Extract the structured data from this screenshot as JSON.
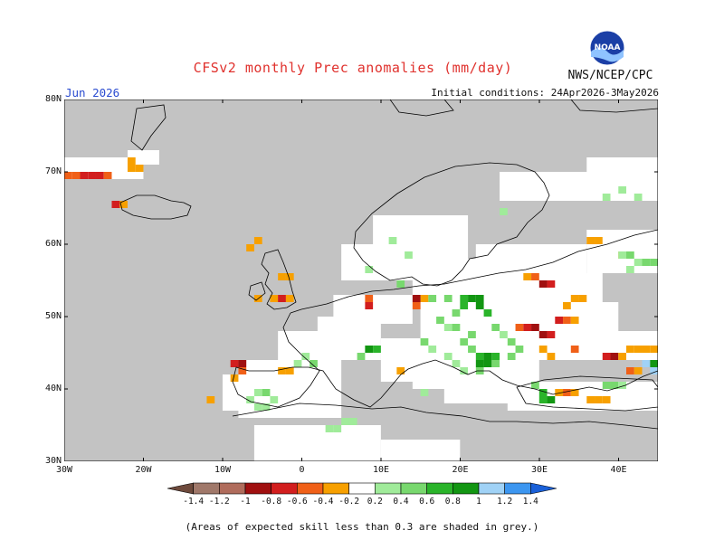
{
  "header": {
    "title": "CFSv2 monthly Prec anomalies (mm/day)",
    "org": "NWS/NCEP/CPC",
    "logo_text": "NOAA",
    "month": "Jun 2026",
    "initial_conditions": "Initial conditions: 24Apr2026-3May2026"
  },
  "map": {
    "y_ticks": [
      "80N",
      "70N",
      "60N",
      "50N",
      "40N",
      "30N"
    ],
    "x_ticks": [
      "30W",
      "20W",
      "10W",
      "0",
      "10E",
      "20E",
      "30E",
      "40E"
    ],
    "lon_range": [
      -30,
      45
    ],
    "lat_range": [
      30,
      80
    ],
    "colors": {
      "skill_grey": "#c3c3c3",
      "land_white": "#ffffff",
      "coast": "#000000"
    }
  },
  "colorbar": {
    "labels": [
      "-1.4",
      "-1.2",
      "-1",
      "-0.8",
      "-0.6",
      "-0.4",
      "-0.2",
      "0.2",
      "0.4",
      "0.6",
      "0.8",
      "1",
      "1.2",
      "1.4"
    ],
    "colors": [
      "#6e4a3c",
      "#a0786a",
      "#b06c5c",
      "#a01010",
      "#d21e1e",
      "#f06018",
      "#f7a000",
      "#ffffff",
      "#a0eb9a",
      "#78d86e",
      "#2ab42a",
      "#129612",
      "#a0d2f6",
      "#3c96f0",
      "#1a60d8"
    ]
  },
  "footnote": "(Areas of expected skill less than 0.3 are shaded in grey.)"
}
